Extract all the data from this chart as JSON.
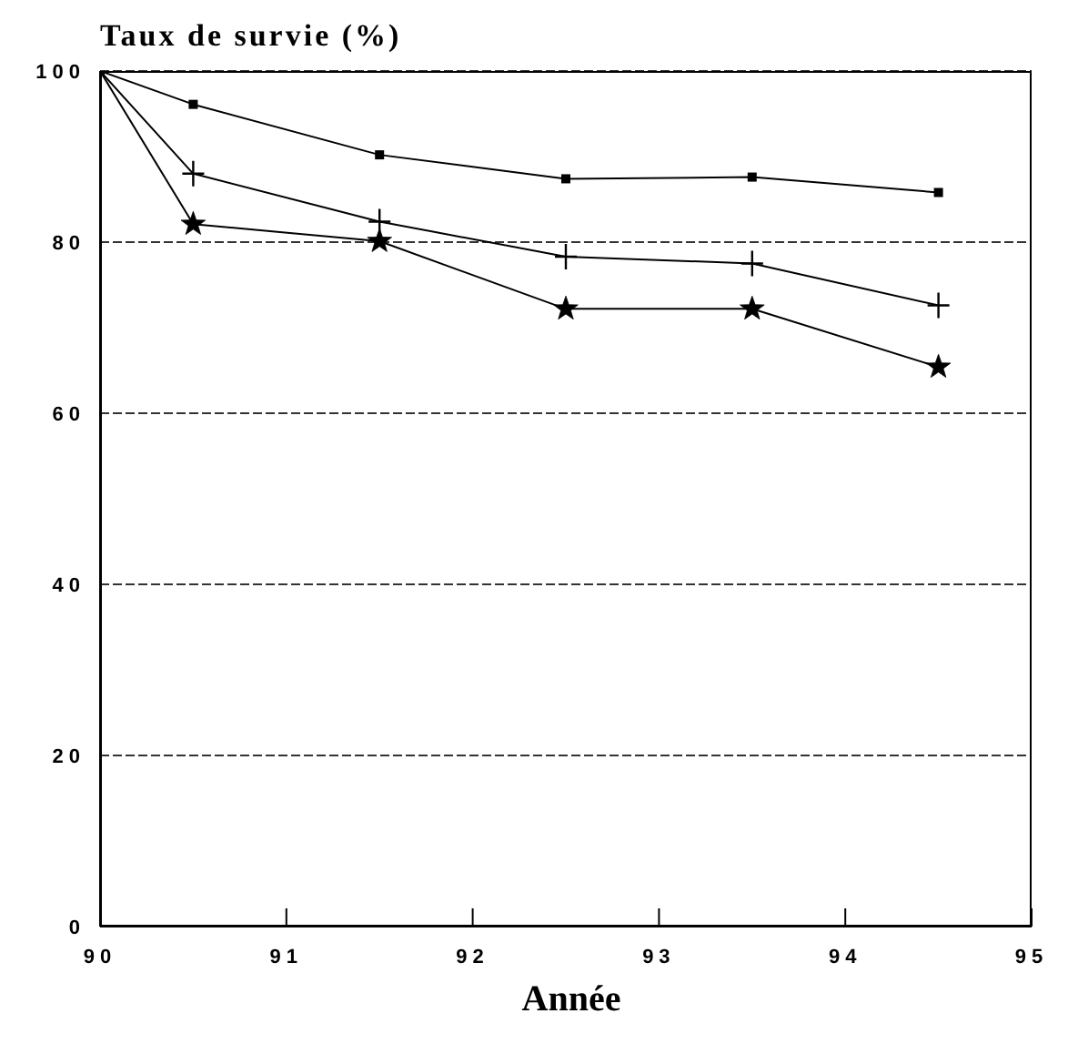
{
  "chart_data": {
    "type": "line",
    "title": "Taux de survie (%)",
    "xlabel": "Année",
    "x": [
      90,
      90.5,
      91.5,
      92.5,
      93.5,
      94.5
    ],
    "series": [
      {
        "color": "#000000",
        "marker": "square",
        "values": [
          100,
          96.1,
          90.2,
          87.4,
          87.6,
          85.8
        ]
      },
      {
        "color": "#000000",
        "marker": "cross",
        "values": [
          100,
          88.0,
          82.4,
          78.3,
          77.5,
          72.6
        ]
      },
      {
        "color": "#000000",
        "marker": "star",
        "values": [
          100,
          82.1,
          80.1,
          72.2,
          72.2,
          65.4
        ]
      }
    ],
    "xlim": [
      90,
      95
    ],
    "xticks": [
      90,
      91,
      92,
      93,
      94,
      95
    ],
    "ylim": [
      0,
      100
    ],
    "yticks": [
      0,
      20,
      40,
      60,
      80,
      100
    ],
    "grid": "y",
    "legend": false,
    "line_style": "solid"
  }
}
